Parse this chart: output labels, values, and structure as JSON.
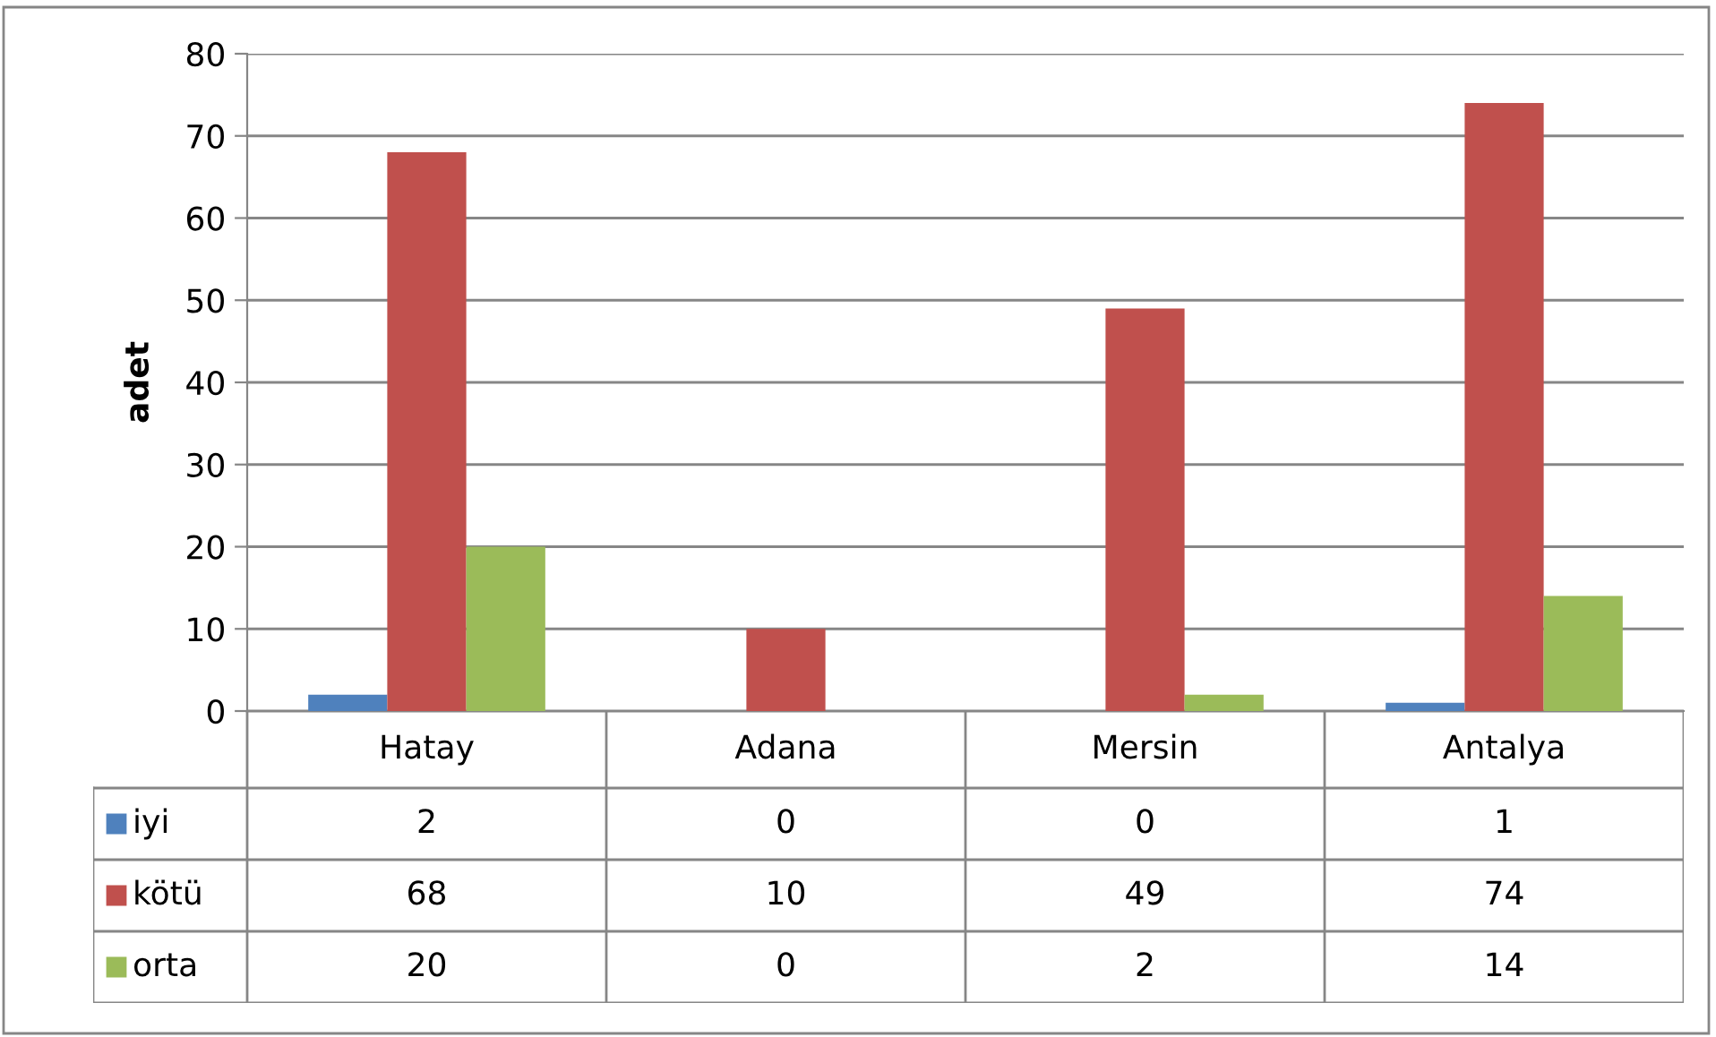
{
  "chart_data": {
    "type": "bar",
    "ylabel": "adet",
    "categories": [
      "Hatay",
      "Adana",
      "Mersin",
      "Antalya"
    ],
    "series": [
      {
        "name": "iyi",
        "color": "#4f81bd",
        "values": [
          2,
          0,
          0,
          1
        ]
      },
      {
        "name": "kötü",
        "color": "#c0504d",
        "values": [
          68,
          10,
          49,
          74
        ]
      },
      {
        "name": "orta",
        "color": "#9bbb59",
        "values": [
          20,
          0,
          2,
          14
        ]
      }
    ],
    "ylim": [
      0,
      80
    ],
    "yticks": [
      0,
      10,
      20,
      30,
      40,
      50,
      60,
      70,
      80
    ],
    "grid": "y",
    "legend": "bottom",
    "data_labels": true
  }
}
